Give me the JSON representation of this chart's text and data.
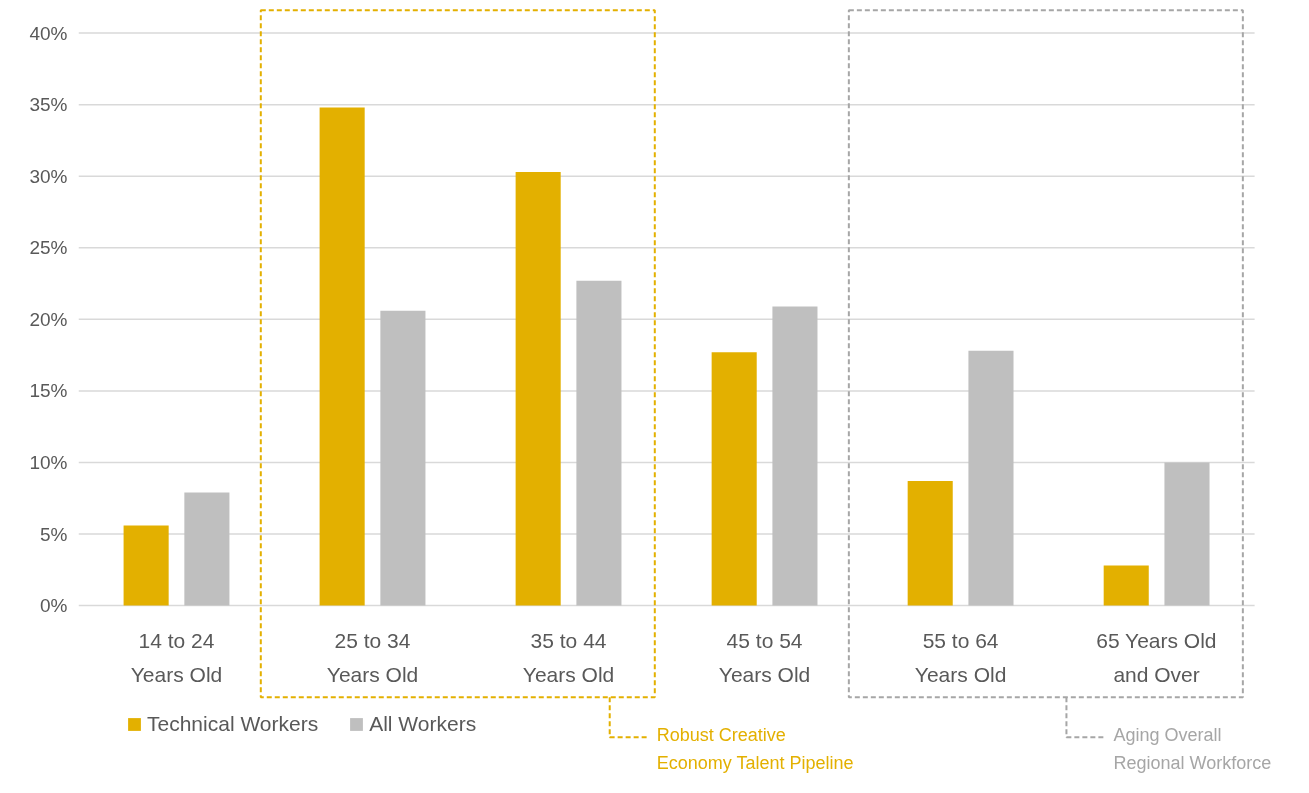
{
  "chart_data": {
    "type": "bar",
    "categories": [
      "14 to 24\nYears Old",
      "25 to 34\nYears Old",
      "35 to 44\nYears Old",
      "45 to 54\nYears Old",
      "55 to 64\nYears Old",
      "65 Years Old\nand Over"
    ],
    "series": [
      {
        "name": "Technical Workers",
        "color": "#e3b000",
        "values": [
          5.6,
          34.8,
          30.3,
          17.7,
          8.7,
          2.8
        ]
      },
      {
        "name": "All Workers",
        "color": "#bfbfbf",
        "values": [
          7.9,
          20.6,
          22.7,
          20.9,
          17.8,
          10.0
        ]
      }
    ],
    "ylim": [
      0,
      40
    ],
    "yticks": [
      {
        "value": 0,
        "label": "0%"
      },
      {
        "value": 5,
        "label": "5%"
      },
      {
        "value": 10,
        "label": "10%"
      },
      {
        "value": 15,
        "label": "15%"
      },
      {
        "value": 20,
        "label": "20%"
      },
      {
        "value": 25,
        "label": "25%"
      },
      {
        "value": 30,
        "label": "30%"
      },
      {
        "value": 35,
        "label": "35%"
      },
      {
        "value": 40,
        "label": "40%"
      }
    ],
    "grid": "y",
    "legend": "bottom left",
    "annotations": [
      "Robust Creative\nEconomy Talent Pipeline",
      "Aging Overall\nRegional Workforce"
    ]
  }
}
